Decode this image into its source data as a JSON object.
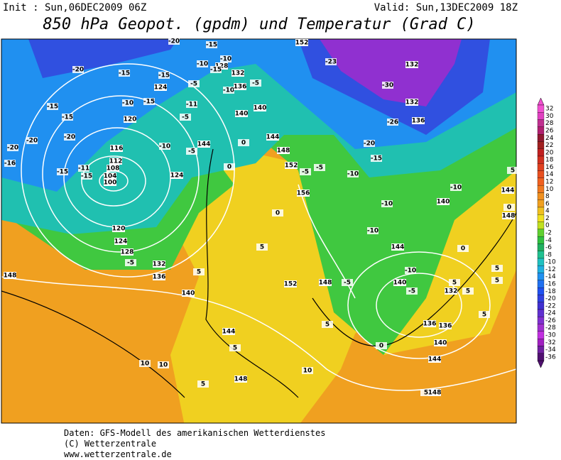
{
  "header": {
    "init": "Init : Sun,06DEC2009  06Z",
    "valid": "Valid: Sun,13DEC2009  18Z",
    "title": "850 hPa Geopot. (gpdm) und Temperatur (Grad C)"
  },
  "legend": {
    "levels": [
      32,
      30,
      28,
      26,
      24,
      22,
      20,
      18,
      16,
      14,
      12,
      10,
      8,
      6,
      4,
      2,
      0,
      -2,
      -4,
      -6,
      -8,
      -10,
      -12,
      -14,
      -16,
      -18,
      -20,
      -22,
      -24,
      -26,
      -28,
      -30,
      -32,
      -34,
      -36
    ],
    "colors": [
      "#f050d0",
      "#e040c0",
      "#c03090",
      "#b02070",
      "#901830",
      "#a02020",
      "#c02020",
      "#d03020",
      "#e04020",
      "#e85020",
      "#f06020",
      "#f07820",
      "#f09020",
      "#f0a020",
      "#f0c020",
      "#f0e020",
      "#c0e020",
      "#60d030",
      "#30c040",
      "#20b060",
      "#20c090",
      "#20c0c0",
      "#20b0e0",
      "#2090f0",
      "#2070f0",
      "#2050f0",
      "#3040e0",
      "#4030d0",
      "#6030d0",
      "#8030d0",
      "#a030d0",
      "#c030e0",
      "#a020c0",
      "#7020a0",
      "#501070"
    ]
  },
  "map_labels": [
    -20,
    -15,
    -20,
    -15,
    124,
    -15,
    -10,
    -10,
    128,
    -15,
    132,
    -5,
    -10,
    136,
    -5,
    140,
    140,
    -10,
    -15,
    120,
    -11,
    -5,
    -15,
    -15,
    -20,
    -20,
    -20,
    -16,
    -15,
    116,
    -10,
    -5,
    144,
    0,
    144,
    148,
    112,
    108,
    104,
    100,
    -11,
    -15,
    124,
    0,
    152,
    -5,
    -5,
    156,
    152,
    -23,
    132,
    -30,
    132,
    -26,
    136,
    -20,
    -15,
    -10,
    -10,
    -10,
    140,
    144,
    5,
    0,
    148,
    -10,
    0,
    120,
    124,
    128,
    -5,
    132,
    136,
    140,
    5,
    5,
    152,
    148,
    -5,
    144,
    -10,
    140,
    -5,
    0,
    5,
    5,
    5,
    5,
    132,
    5,
    136,
    136,
    140,
    0,
    144,
    148,
    144,
    5,
    5,
    10,
    10,
    5,
    148,
    10,
    5,
    148
  ],
  "footer": [
    "Daten: GFS-Modell des amerikanischen Wetterdienstes",
    "(C) Wetterzentrale",
    "www.wetterzentrale.de"
  ]
}
